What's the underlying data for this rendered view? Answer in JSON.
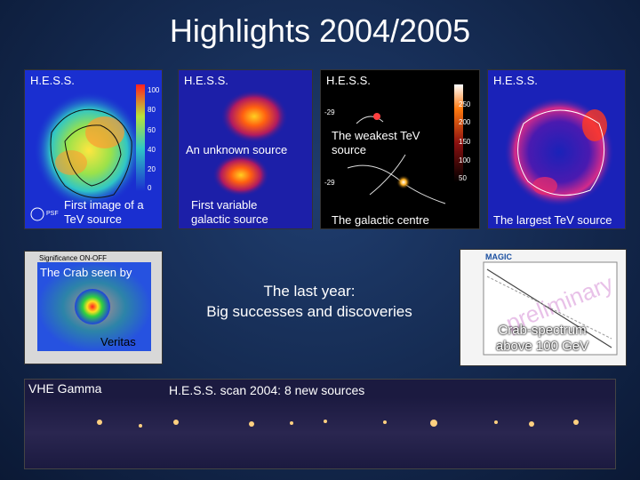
{
  "title": "Highlights 2004/2005",
  "panels": {
    "p1": {
      "label": "H.E.S.S.",
      "caption_l1": "First image of a",
      "caption_l2": "TeV source",
      "psf": "PSF",
      "ticks": [
        "100",
        "80",
        "60",
        "40",
        "20",
        "0"
      ]
    },
    "p2": {
      "label": "H.E.S.S.",
      "caption_top": "An unknown source",
      "caption_l1": "First variable",
      "caption_l2": "galactic source"
    },
    "p3": {
      "label": "H.E.S.S.",
      "caption_top_l1": "The weakest TeV",
      "caption_top_l2": "source",
      "caption_bottom": "The galactic centre",
      "ticks": [
        "250",
        "200",
        "150",
        "100",
        "50"
      ],
      "ytick_top": "-29",
      "ytick_bot": "-29"
    },
    "p4": {
      "label": "H.E.S.S.",
      "caption": "The largest TeV source"
    }
  },
  "crab": {
    "header": "Significance ON-OFF",
    "caption_top": "The Crab seen by",
    "caption_bottom": "Veritas"
  },
  "center": {
    "line1": "The last year:",
    "line2": "Big successes and discoveries"
  },
  "magic": {
    "logo": "MAGIC",
    "watermark": "preliminary",
    "caption_l1": "Crab-spectrum",
    "caption_l2": "above 100 GeV"
  },
  "strip": {
    "label": "VHE Gamma",
    "caption": "H.E.S.S. scan 2004: 8 new sources"
  }
}
